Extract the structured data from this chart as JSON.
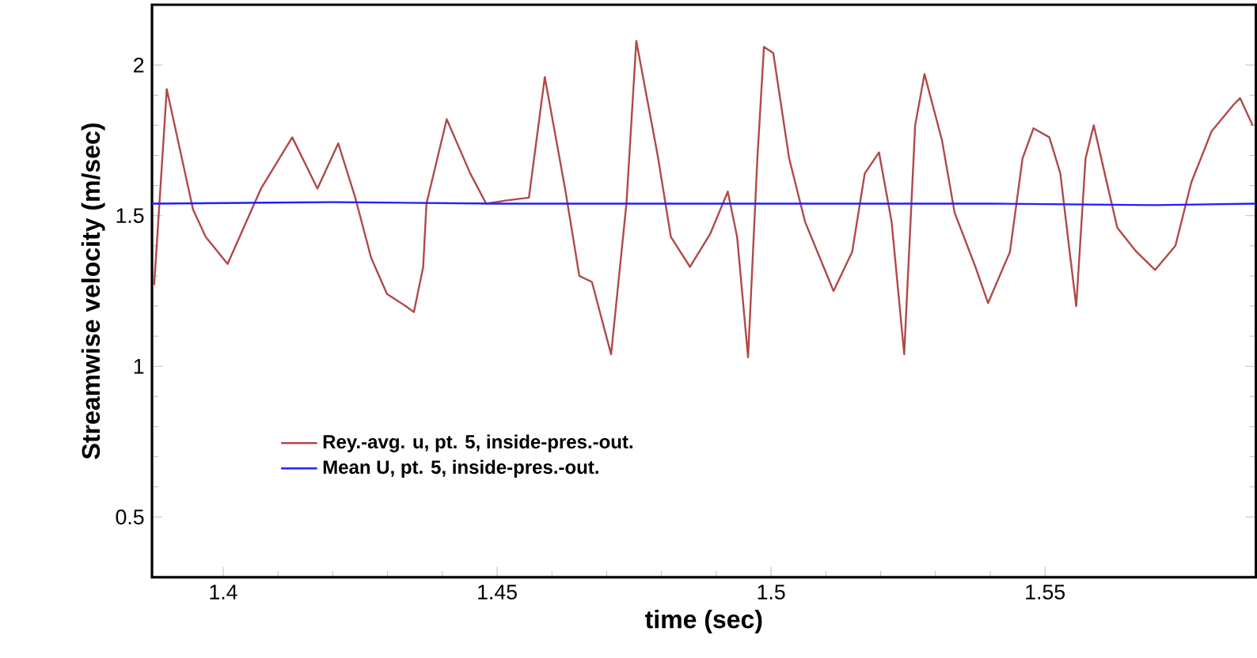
{
  "chart_data": {
    "type": "line",
    "xlabel": "time (sec)",
    "ylabel": "Streamwise velocity (m/sec)",
    "xlim": [
      1.387,
      1.5885
    ],
    "ylim": [
      0.3,
      2.2
    ],
    "xticks": [
      1.4,
      1.45,
      1.5,
      1.55
    ],
    "yticks": [
      0.5,
      1,
      1.5,
      2
    ],
    "grid": false,
    "legend": "bottom left",
    "marker": "none",
    "line_style": "solid",
    "series": [
      {
        "name": "Rey.-avg. u, pt. 5, inside-pres.-out.",
        "color": "#b04a4a",
        "x": [
          1.3874,
          1.3897,
          1.3945,
          1.3968,
          1.4008,
          1.4069,
          1.4126,
          1.4172,
          1.421,
          1.4241,
          1.427,
          1.4299,
          1.4333,
          1.4348,
          1.4365,
          1.4371,
          1.4408,
          1.4451,
          1.448,
          1.4515,
          1.4558,
          1.4587,
          1.4624,
          1.465,
          1.4673,
          1.4708,
          1.4736,
          1.4754,
          1.4794,
          1.4817,
          1.4852,
          1.4889,
          1.4921,
          1.4938,
          1.4958,
          1.4975,
          1.4987,
          1.5004,
          1.5033,
          1.5062,
          1.5114,
          1.5148,
          1.5171,
          1.5197,
          1.522,
          1.5243,
          1.5263,
          1.528,
          1.5312,
          1.5335,
          1.5373,
          1.5396,
          1.5436,
          1.5459,
          1.5479,
          1.5508,
          1.5528,
          1.5545,
          1.5557,
          1.5574,
          1.5589,
          1.5609,
          1.5632,
          1.5667,
          1.5701,
          1.5738,
          1.5767,
          1.5804,
          1.5845,
          1.5856,
          1.5879
        ],
        "values": [
          1.27,
          1.92,
          1.52,
          1.43,
          1.34,
          1.59,
          1.76,
          1.59,
          1.74,
          1.56,
          1.36,
          1.24,
          1.2,
          1.18,
          1.33,
          1.54,
          1.82,
          1.64,
          1.54,
          1.55,
          1.56,
          1.96,
          1.59,
          1.3,
          1.28,
          1.04,
          1.54,
          2.08,
          1.69,
          1.43,
          1.33,
          1.44,
          1.58,
          1.43,
          1.03,
          1.69,
          2.06,
          2.04,
          1.69,
          1.48,
          1.25,
          1.38,
          1.64,
          1.71,
          1.48,
          1.04,
          1.8,
          1.97,
          1.75,
          1.51,
          1.33,
          1.21,
          1.38,
          1.69,
          1.79,
          1.76,
          1.64,
          1.38,
          1.2,
          1.69,
          1.8,
          1.64,
          1.46,
          1.38,
          1.32,
          1.4,
          1.61,
          1.78,
          1.87,
          1.89,
          1.8
        ]
      },
      {
        "name": "Mean U, pt. 5, inside-pres.-out.",
        "color": "#2020ff",
        "x": [
          1.387,
          1.42,
          1.45,
          1.48,
          1.51,
          1.54,
          1.57,
          1.5885
        ],
        "values": [
          1.54,
          1.545,
          1.54,
          1.54,
          1.54,
          1.54,
          1.535,
          1.54
        ]
      }
    ]
  }
}
